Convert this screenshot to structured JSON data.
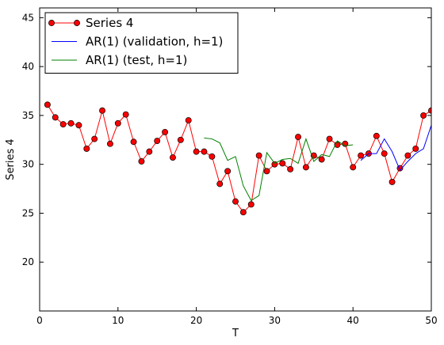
{
  "chart_data": {
    "type": "line",
    "xlabel": "T",
    "ylabel": "Series 4",
    "xlim": [
      0,
      50
    ],
    "ylim": [
      15,
      46
    ],
    "xticks": [
      "0",
      "10",
      "20",
      "30",
      "40",
      "50"
    ],
    "yticks": [
      "20",
      "25",
      "30",
      "35",
      "40",
      "45"
    ],
    "grid": false,
    "legend_position": "top-left",
    "series": [
      {
        "name": "Series 4",
        "color": "#ff0000",
        "marker": "circle",
        "x": [
          1,
          2,
          3,
          4,
          5,
          6,
          7,
          8,
          9,
          10,
          11,
          12,
          13,
          14,
          15,
          16,
          17,
          18,
          19,
          20,
          21,
          22,
          23,
          24,
          25,
          26,
          27,
          28,
          29,
          30,
          31,
          32,
          33,
          34,
          35,
          36,
          37,
          38,
          39,
          40,
          41,
          42,
          43,
          44,
          45,
          46,
          47,
          48,
          49,
          50
        ],
        "y": [
          36.1,
          34.8,
          34.1,
          34.2,
          34.0,
          31.6,
          32.6,
          35.5,
          32.1,
          34.2,
          35.1,
          32.3,
          30.3,
          31.3,
          32.4,
          33.3,
          30.7,
          32.5,
          34.5,
          31.3,
          31.3,
          30.8,
          28.0,
          29.3,
          26.2,
          25.1,
          25.9,
          30.9,
          29.3,
          30.0,
          30.1,
          29.5,
          32.8,
          29.7,
          30.9,
          30.5,
          32.6,
          32.0,
          32.1,
          29.7,
          30.9,
          31.1,
          32.9,
          31.1,
          28.2,
          29.6,
          30.9,
          31.6,
          35.0,
          35.5
        ]
      },
      {
        "name": "AR(1) (validation, h=1)",
        "color": "#0000ff",
        "marker": "none",
        "x": [
          41,
          42,
          43,
          44,
          45,
          46,
          47,
          48,
          49,
          50
        ],
        "y": [
          30.4,
          31.1,
          31.1,
          32.6,
          31.3,
          29.4,
          30.3,
          31.1,
          31.6,
          34.0
        ]
      },
      {
        "name": "AR(1) (test, h=1)",
        "color": "#008000",
        "marker": "none",
        "x": [
          21,
          22,
          23,
          24,
          25,
          26,
          27,
          28,
          29,
          30,
          31,
          32,
          33,
          34,
          35,
          36,
          37,
          38,
          39,
          40
        ],
        "y": [
          32.7,
          32.6,
          32.2,
          30.4,
          30.8,
          27.8,
          26.3,
          26.8,
          31.2,
          30.1,
          30.5,
          30.6,
          30.1,
          32.6,
          30.3,
          31.0,
          30.8,
          32.4,
          31.9,
          32.0
        ]
      }
    ]
  }
}
